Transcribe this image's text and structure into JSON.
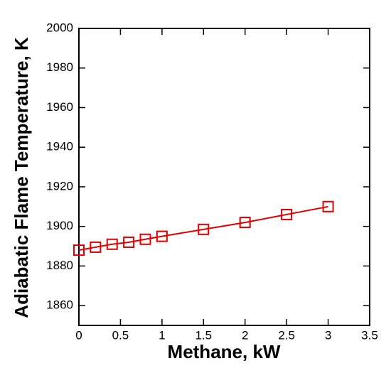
{
  "chart_data": {
    "type": "line",
    "x_label": "Methane, kW",
    "y_label": "Adiabatic Flame Temperature, K",
    "x": [
      0,
      0.2,
      0.4,
      0.6,
      0.8,
      1,
      1.5,
      2,
      2.5,
      3
    ],
    "series": [
      {
        "color": "#e00000",
        "marker": "square",
        "values": [
          1888,
          1889.5,
          1891,
          1892,
          1893.5,
          1895,
          1898.5,
          1902,
          1906,
          1910
        ]
      }
    ],
    "xlim": [
      0,
      3.5
    ],
    "xticks": [
      0,
      0.5,
      1,
      1.5,
      2,
      2.5,
      3,
      3.5
    ],
    "ylim": [
      1850,
      2000
    ],
    "yticks": [
      1860,
      1880,
      1900,
      1920,
      1940,
      1960,
      1980,
      2000
    ],
    "grid": false
  }
}
